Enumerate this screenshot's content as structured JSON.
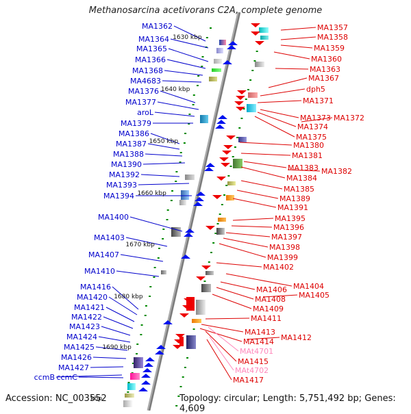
{
  "title": "Methanosarcina acetivorans C2A, complete genome",
  "footer": {
    "accession": "Accession: NC_003552",
    "topology": "Topology: circular; Length: 5,751,492 bp; Genes: 4,609"
  },
  "colors": {
    "left_labels": "#0000cc",
    "right_labels": "#dd0000",
    "rna_labels": "#ff88bb",
    "axis": "#888888",
    "tick": "#008800"
  },
  "kbp_labels": [
    "1630 kbp",
    "1640 kbp",
    "1650 kbp",
    "1660 kbp",
    "1670 kbp",
    "1680 kbp",
    "1690 kbp",
    "kbp"
  ],
  "left_genes": [
    "MA1362",
    "MA1364",
    "MA1365",
    "MA1366",
    "MA1368",
    "MA4683",
    "MA1376",
    "MA1377",
    "aroL",
    "MA1379",
    "MA1386",
    "MA1387",
    "MA1388",
    "MA1390",
    "MA1392",
    "MA1393",
    "MA1394",
    "MA1400",
    "MA1403",
    "MA1407",
    "MA1410",
    "MA1416",
    "MA1420",
    "MA1421",
    "MA1422",
    "MA1423",
    "MA1424",
    "MA1425",
    "MA1426",
    "MA1427",
    "ccmB",
    "ccmC"
  ],
  "right_genes": [
    "MA1357",
    "MA1358",
    "MA1359",
    "MA1360",
    "MA1363",
    "MA1367",
    "dph5",
    "MA1371",
    "MA1373",
    "MA1372",
    "MA1374",
    "MA1375",
    "MA1380",
    "MA1381",
    "MA1383",
    "MA1382",
    "MA1384",
    "MA1385",
    "MA1389",
    "MA1391",
    "MA1395",
    "MA1396",
    "MA1397",
    "MA1398",
    "MA1399",
    "MA1402",
    "MA1404",
    "MA1406",
    "MA1405",
    "MA1408",
    "MA1409",
    "MA1411",
    "MA1413",
    "MA1412",
    "MA1414",
    "MAt4701",
    "MA1415",
    "MAt4702",
    "MA1417"
  ]
}
